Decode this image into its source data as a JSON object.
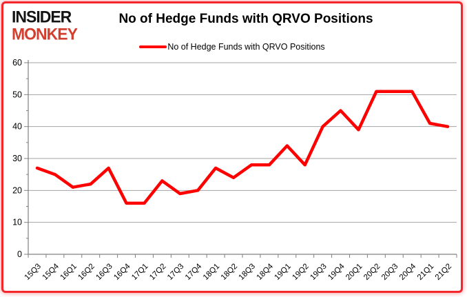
{
  "logo": {
    "line1": "INSIDER",
    "line2": "MONKEY"
  },
  "header": {
    "title": "No of Hedge Funds with QRVO Positions"
  },
  "legend": {
    "label": "No of Hedge Funds with QRVO Positions"
  },
  "chart_data": {
    "type": "line",
    "title": "No of Hedge Funds with QRVO Positions",
    "categories": [
      "15Q3",
      "15Q4",
      "16Q1",
      "16Q2",
      "16Q3",
      "16Q4",
      "17Q1",
      "17Q2",
      "17Q3",
      "17Q4",
      "18Q1",
      "18Q2",
      "18Q3",
      "18Q4",
      "19Q1",
      "19Q2",
      "19Q3",
      "19Q4",
      "20Q1",
      "20Q2",
      "20Q3",
      "20Q4",
      "21Q1",
      "21Q2"
    ],
    "series": [
      {
        "name": "No of Hedge Funds with QRVO Positions",
        "values": [
          27,
          25,
          21,
          22,
          27,
          16,
          16,
          23,
          19,
          20,
          27,
          24,
          28,
          28,
          34,
          28,
          40,
          45,
          39,
          51,
          51,
          51,
          41,
          40
        ]
      }
    ],
    "xlabel": "",
    "ylabel": "",
    "ylim": [
      0,
      60
    ],
    "ytick_step": 10,
    "y_minor_step": 5,
    "grid": true,
    "legend_position": "top-center",
    "line_color": "#FF0000",
    "grid_color": "#a3a3a3",
    "axis_color": "#808080",
    "label_color": "#000000"
  },
  "colors": {
    "logo_insider": "#141414",
    "logo_monkey": "#d23f2e",
    "frame_border": "#f2262b",
    "background": "#ffffff"
  }
}
